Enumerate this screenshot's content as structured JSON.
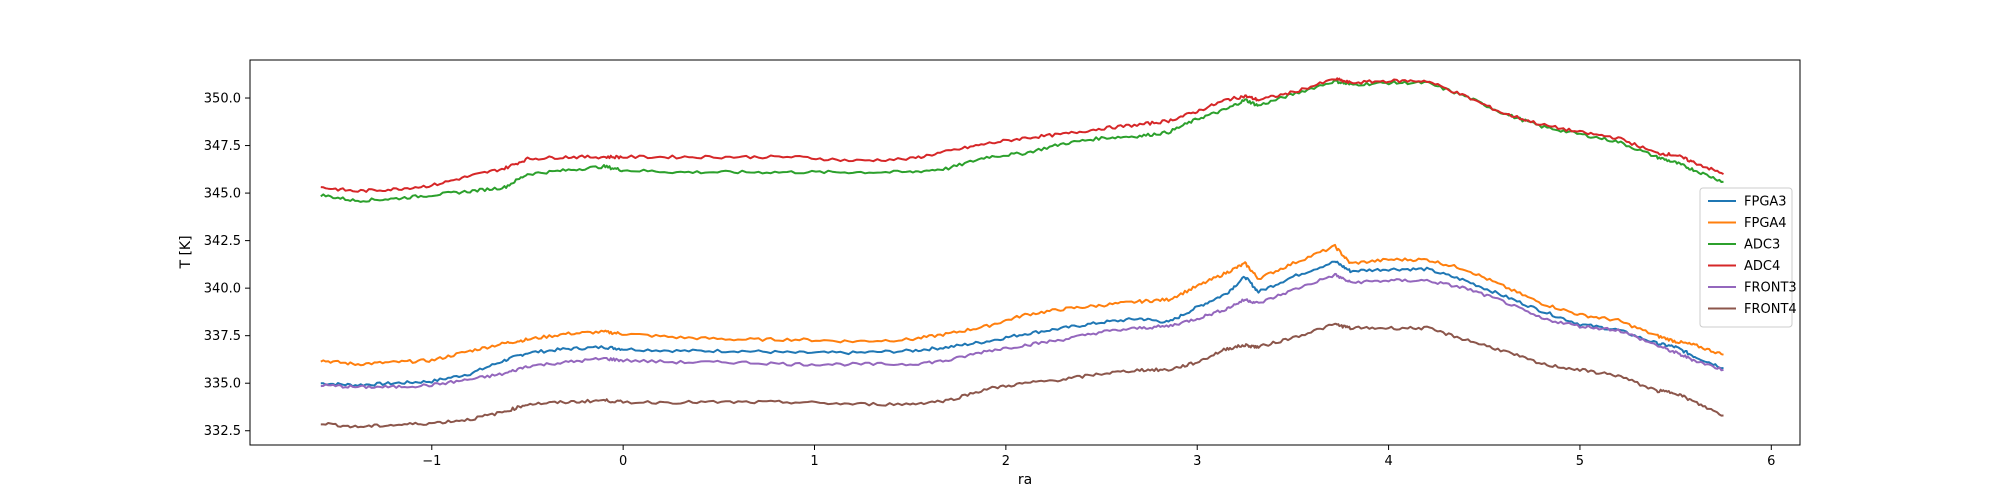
{
  "chart_data": {
    "type": "line",
    "xlabel": "ra",
    "ylabel": "T [K]",
    "xlim": [
      -1.95,
      6.15
    ],
    "ylim": [
      331.75,
      352.0
    ],
    "xticks": [
      -1,
      0,
      1,
      2,
      3,
      4,
      5,
      6
    ],
    "xtick_labels": [
      "−1",
      "0",
      "1",
      "2",
      "3",
      "4",
      "5",
      "6"
    ],
    "yticks": [
      332.5,
      335.0,
      337.5,
      340.0,
      342.5,
      345.0,
      347.5,
      350.0
    ],
    "ytick_labels": [
      "332.5",
      "335.0",
      "337.5",
      "340.0",
      "342.5",
      "345.0",
      "347.5",
      "350.0"
    ],
    "grid": false,
    "legend_position": "right",
    "x": [
      -1.58,
      -1.4,
      -1.2,
      -1.0,
      -0.8,
      -0.62,
      -0.5,
      -0.3,
      -0.1,
      0.0,
      0.3,
      0.6,
      0.9,
      1.2,
      1.5,
      1.7,
      1.9,
      2.1,
      2.3,
      2.5,
      2.7,
      2.85,
      3.0,
      3.15,
      3.25,
      3.32,
      3.5,
      3.72,
      3.8,
      4.0,
      4.2,
      4.4,
      4.6,
      4.8,
      5.0,
      5.2,
      5.4,
      5.5,
      5.6,
      5.75
    ],
    "series": [
      {
        "name": "FPGA3",
        "color": "#1f77b4",
        "values": [
          335.0,
          334.9,
          335.0,
          335.1,
          335.5,
          336.2,
          336.6,
          336.8,
          336.9,
          336.8,
          336.7,
          336.7,
          336.6,
          336.6,
          336.7,
          336.9,
          337.2,
          337.6,
          337.9,
          338.2,
          338.4,
          338.2,
          339.0,
          339.7,
          340.6,
          339.8,
          340.6,
          341.4,
          340.9,
          341.0,
          341.0,
          340.4,
          339.6,
          338.8,
          338.1,
          337.8,
          337.1,
          336.9,
          336.4,
          335.8
        ]
      },
      {
        "name": "FPGA4",
        "color": "#ff7f0e",
        "values": [
          336.2,
          336.0,
          336.1,
          336.2,
          336.7,
          337.1,
          337.3,
          337.6,
          337.7,
          337.6,
          337.4,
          337.3,
          337.3,
          337.2,
          337.3,
          337.6,
          338.0,
          338.6,
          338.9,
          339.1,
          339.3,
          339.4,
          340.1,
          340.8,
          341.3,
          340.5,
          341.3,
          342.2,
          341.3,
          341.5,
          341.5,
          341.0,
          340.1,
          339.2,
          338.6,
          338.3,
          337.5,
          337.2,
          337.0,
          336.5
        ]
      },
      {
        "name": "ADC3",
        "color": "#2ca02c",
        "values": [
          344.9,
          344.6,
          344.7,
          344.9,
          345.1,
          345.3,
          346.0,
          346.2,
          346.4,
          346.2,
          346.1,
          346.1,
          346.1,
          346.1,
          346.1,
          346.3,
          346.9,
          347.1,
          347.6,
          347.9,
          348.0,
          348.2,
          348.9,
          349.4,
          349.9,
          349.6,
          350.2,
          350.9,
          350.7,
          350.8,
          350.8,
          350.1,
          349.2,
          348.5,
          348.1,
          347.7,
          346.9,
          346.6,
          346.2,
          345.6
        ]
      },
      {
        "name": "ADC4",
        "color": "#d62728",
        "values": [
          345.3,
          345.1,
          345.2,
          345.4,
          345.9,
          346.3,
          346.8,
          346.9,
          346.9,
          346.9,
          346.9,
          346.9,
          346.9,
          346.7,
          346.8,
          347.2,
          347.6,
          347.9,
          348.1,
          348.4,
          348.6,
          348.8,
          349.3,
          349.9,
          350.1,
          349.9,
          350.3,
          351.0,
          350.8,
          350.9,
          350.9,
          350.1,
          349.2,
          348.6,
          348.2,
          347.9,
          347.1,
          347.0,
          346.6,
          346.0
        ]
      },
      {
        "name": "FRONT3",
        "color": "#9467bd",
        "values": [
          334.9,
          334.8,
          334.8,
          334.9,
          335.2,
          335.5,
          335.9,
          336.1,
          336.3,
          336.2,
          336.1,
          336.1,
          336.0,
          336.0,
          336.0,
          336.2,
          336.7,
          337.0,
          337.3,
          337.7,
          337.9,
          338.0,
          338.4,
          338.9,
          339.4,
          339.2,
          339.9,
          340.7,
          340.3,
          340.4,
          340.4,
          340.0,
          339.3,
          338.4,
          338.0,
          337.8,
          337.0,
          336.6,
          336.2,
          335.7
        ]
      },
      {
        "name": "FRONT4",
        "color": "#8c564b",
        "values": [
          332.9,
          332.7,
          332.8,
          332.9,
          333.1,
          333.5,
          333.9,
          334.0,
          334.1,
          334.0,
          334.0,
          334.0,
          334.0,
          333.9,
          333.9,
          334.1,
          334.7,
          335.0,
          335.2,
          335.5,
          335.7,
          335.7,
          336.1,
          336.8,
          337.0,
          336.9,
          337.4,
          338.1,
          337.9,
          337.9,
          337.9,
          337.3,
          336.7,
          336.0,
          335.7,
          335.4,
          334.6,
          334.5,
          334.0,
          333.3
        ]
      }
    ]
  }
}
